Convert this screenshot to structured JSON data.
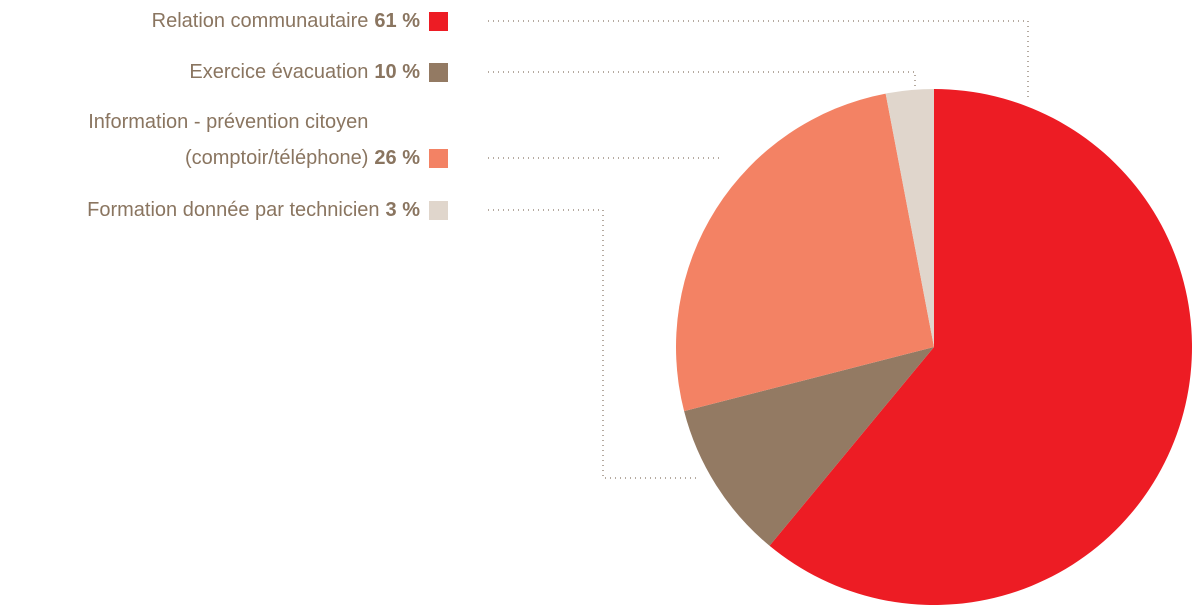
{
  "chart_data": {
    "type": "pie",
    "categories": [
      "Relation communautaire",
      "Exercice évacuation",
      "Information - prévention citoyen\n(comptoir/téléphone)",
      "Formation donnée par technicien"
    ],
    "values": [
      61,
      10,
      26,
      3
    ],
    "value_labels": [
      "61 %",
      "10 %",
      "26 %",
      "3 %"
    ],
    "colors": [
      "#ed1c24",
      "#937a63",
      "#f38264",
      "#e0d6cc"
    ]
  }
}
